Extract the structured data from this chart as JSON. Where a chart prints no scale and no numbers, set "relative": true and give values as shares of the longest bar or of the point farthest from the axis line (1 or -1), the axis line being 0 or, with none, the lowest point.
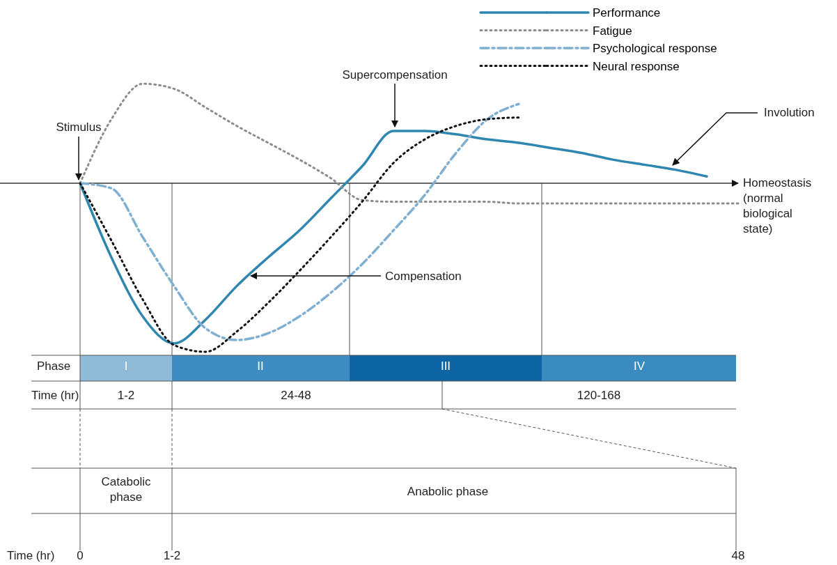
{
  "chart_data": {
    "type": "line",
    "relative": true,
    "legend": "top right",
    "tick_labels": false,
    "categories": [
      null,
      null,
      null,
      null,
      null,
      null,
      null,
      null,
      null,
      null,
      null,
      null,
      null,
      null,
      null,
      null,
      null,
      null,
      null,
      null,
      null,
      null
    ],
    "series": [
      {
        "name": "Performance",
        "color": "#2f86b0",
        "line_style": "solid",
        "values": [
          0,
          -0.44,
          -0.79,
          -0.95,
          -0.81,
          -0.61,
          -0.44,
          -0.28,
          -0.09,
          0.1,
          0.31,
          0.31,
          0.29,
          0.26,
          0.24,
          0.21,
          0.18,
          0.14,
          0.11,
          0.08,
          0.04,
          null
        ]
      },
      {
        "name": "Fatigue",
        "color": "#8c8c8c",
        "line_style": "dotted",
        "values": [
          0,
          0.38,
          0.59,
          0.56,
          0.45,
          0.34,
          0.24,
          0.14,
          0.03,
          -0.1,
          -0.11,
          -0.11,
          -0.11,
          -0.11,
          -0.12,
          -0.12,
          -0.12,
          -0.12,
          -0.12,
          -0.12,
          -0.12,
          -0.12
        ]
      },
      {
        "name": "Psychological response",
        "color": "#7fb0d2",
        "line_style": "dashed",
        "values": [
          0,
          -0.03,
          -0.32,
          -0.61,
          -0.86,
          -0.93,
          -0.89,
          -0.79,
          -0.65,
          -0.48,
          -0.28,
          -0.07,
          0.18,
          0.38,
          0.47,
          null,
          null,
          null,
          null,
          null,
          null,
          null
        ]
      },
      {
        "name": "Neural response",
        "color": "#111111",
        "line_style": "dotted",
        "values": [
          0,
          -0.34,
          -0.69,
          -0.96,
          -1,
          -0.88,
          -0.71,
          -0.52,
          -0.32,
          -0.11,
          0.12,
          0.26,
          0.34,
          0.38,
          0.39,
          null,
          null,
          null,
          null,
          null,
          null,
          null
        ]
      }
    ],
    "annotations": [
      "Stimulus",
      "Supercompensation",
      "Compensation",
      "Involution",
      "Homeostasis\n(normal\nbiological\nstate)",
      "Phase",
      "I",
      "II",
      "III",
      "IV",
      "Time (hr)",
      "1-2",
      "24-48",
      "120-168",
      "Catabolic\nphase",
      "Anabolic phase",
      "Time (hr)",
      "0",
      "1-2",
      "48"
    ]
  }
}
